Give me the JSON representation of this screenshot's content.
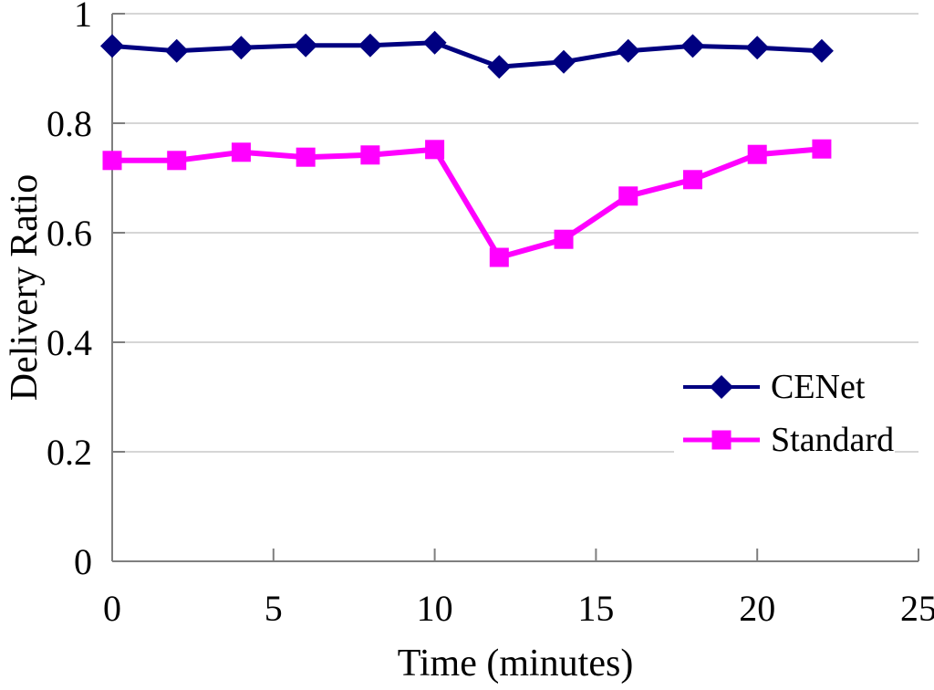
{
  "chart_data": {
    "type": "line",
    "title": "",
    "xlabel": "Time (minutes)",
    "ylabel": "Delivery Ratio",
    "x": [
      0,
      2,
      4,
      6,
      8,
      10,
      12,
      14,
      16,
      18,
      20,
      22
    ],
    "series": [
      {
        "name": "CENet",
        "color": "#000080",
        "marker": "diamond",
        "values": [
          0.941,
          0.932,
          0.938,
          0.942,
          0.942,
          0.947,
          0.903,
          0.912,
          0.932,
          0.941,
          0.938,
          0.932
        ]
      },
      {
        "name": "Standard",
        "color": "#FF00FF",
        "marker": "square",
        "values": [
          0.732,
          0.732,
          0.747,
          0.738,
          0.742,
          0.752,
          0.555,
          0.588,
          0.667,
          0.697,
          0.743,
          0.753
        ]
      }
    ],
    "xlim": [
      0,
      25
    ],
    "ylim": [
      0,
      1
    ],
    "x_ticks": [
      0,
      5,
      10,
      15,
      20,
      25
    ],
    "y_ticks": [
      0,
      0.2,
      0.4,
      0.6,
      0.8,
      1
    ],
    "grid": "horizontal-only",
    "legend_position": "middle-right",
    "styles": {
      "axis_color": "#7F7F7F",
      "grid_color": "#C9C9C9",
      "text_color": "#000000",
      "background": "#FFFFFF"
    }
  }
}
